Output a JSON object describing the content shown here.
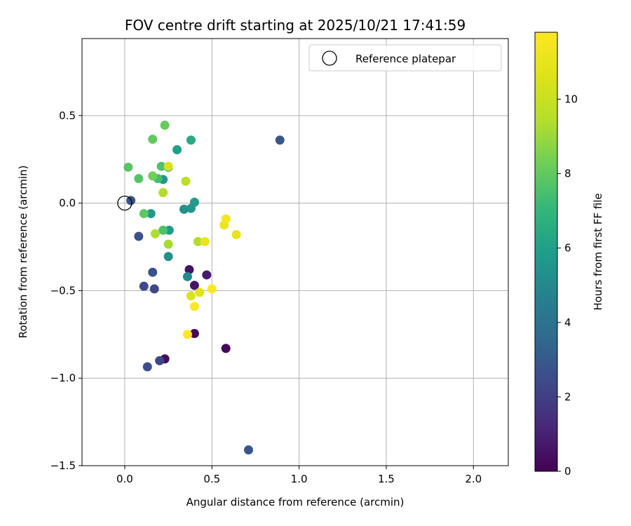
{
  "chart_data": {
    "type": "scatter",
    "title": "FOV centre drift starting at 2025/10/21 17:41:59",
    "xlabel": "Angular distance from reference (arcmin)",
    "ylabel": "Rotation from reference (arcmin)",
    "xlim": [
      -0.245,
      2.2
    ],
    "ylim": [
      -1.5,
      0.94
    ],
    "xticks": [
      0.0,
      0.5,
      1.0,
      1.5,
      2.0
    ],
    "xtick_labels": [
      "0.0",
      "0.5",
      "1.0",
      "1.5",
      "2.0"
    ],
    "yticks": [
      0.5,
      0.0,
      -0.5,
      -1.0,
      -1.5
    ],
    "ytick_labels": [
      "0.5",
      "0.0",
      "−0.5",
      "−1.0",
      "−1.5"
    ],
    "grid": true,
    "legend": {
      "position": "top-right",
      "label": "Reference platepar"
    },
    "reference_point": {
      "x": 0.0,
      "y": 0.0
    },
    "colorbar": {
      "label": "Hours from first FF file",
      "range": [
        0,
        11.8
      ],
      "ticks": [
        0,
        2,
        4,
        6,
        8,
        10
      ],
      "tick_labels": [
        "0",
        "2",
        "4",
        "6",
        "8",
        "10"
      ],
      "colormap": "viridis"
    },
    "points": [
      {
        "x": 0.23,
        "y": -0.89,
        "h": 0.3
      },
      {
        "x": 0.4,
        "y": -0.745,
        "h": 0.2
      },
      {
        "x": 0.58,
        "y": -0.83,
        "h": 0.2
      },
      {
        "x": 0.37,
        "y": -0.38,
        "h": 0.5
      },
      {
        "x": 0.4,
        "y": -0.47,
        "h": 0.6
      },
      {
        "x": 0.47,
        "y": -0.41,
        "h": 0.8
      },
      {
        "x": 0.2,
        "y": -0.9,
        "h": 2.2
      },
      {
        "x": 0.13,
        "y": -0.935,
        "h": 2.5
      },
      {
        "x": 0.71,
        "y": -1.41,
        "h": 2.8
      },
      {
        "x": 0.11,
        "y": -0.475,
        "h": 2.4
      },
      {
        "x": 0.17,
        "y": -0.49,
        "h": 2.3
      },
      {
        "x": 0.16,
        "y": -0.395,
        "h": 2.7
      },
      {
        "x": 0.08,
        "y": -0.19,
        "h": 2.6
      },
      {
        "x": 0.035,
        "y": 0.015,
        "h": 2.7
      },
      {
        "x": 0.89,
        "y": 0.36,
        "h": 2.9
      },
      {
        "x": 0.36,
        "y": -0.42,
        "h": 5.0
      },
      {
        "x": 0.25,
        "y": -0.305,
        "h": 5.3
      },
      {
        "x": 0.34,
        "y": -0.035,
        "h": 5.4
      },
      {
        "x": 0.38,
        "y": -0.03,
        "h": 5.6
      },
      {
        "x": 0.4,
        "y": 0.005,
        "h": 5.8
      },
      {
        "x": 0.22,
        "y": 0.135,
        "h": 5.6
      },
      {
        "x": 0.15,
        "y": -0.06,
        "h": 5.7
      },
      {
        "x": 0.255,
        "y": -0.155,
        "h": 5.8
      },
      {
        "x": 0.3,
        "y": 0.305,
        "h": 6.0
      },
      {
        "x": 0.38,
        "y": 0.36,
        "h": 6.4
      },
      {
        "x": 0.25,
        "y": 0.205,
        "h": 6.6
      },
      {
        "x": 0.19,
        "y": 0.14,
        "h": 7.4
      },
      {
        "x": 0.21,
        "y": 0.21,
        "h": 7.6
      },
      {
        "x": 0.08,
        "y": 0.14,
        "h": 7.7
      },
      {
        "x": 0.02,
        "y": 0.205,
        "h": 7.8
      },
      {
        "x": 0.22,
        "y": -0.155,
        "h": 7.6
      },
      {
        "x": 0.11,
        "y": -0.06,
        "h": 7.9
      },
      {
        "x": 0.16,
        "y": 0.365,
        "h": 8.0
      },
      {
        "x": 0.23,
        "y": 0.445,
        "h": 8.1
      },
      {
        "x": 0.16,
        "y": 0.155,
        "h": 8.3
      },
      {
        "x": 0.175,
        "y": -0.175,
        "h": 9.3
      },
      {
        "x": 0.25,
        "y": -0.235,
        "h": 9.2
      },
      {
        "x": 0.22,
        "y": 0.06,
        "h": 9.4
      },
      {
        "x": 0.35,
        "y": 0.125,
        "h": 9.6
      },
      {
        "x": 0.42,
        "y": -0.22,
        "h": 9.4
      },
      {
        "x": 0.25,
        "y": 0.21,
        "h": 10.5
      },
      {
        "x": 0.38,
        "y": -0.53,
        "h": 10.6
      },
      {
        "x": 0.43,
        "y": -0.51,
        "h": 10.8
      },
      {
        "x": 0.46,
        "y": -0.22,
        "h": 11.1
      },
      {
        "x": 0.57,
        "y": -0.125,
        "h": 11.1
      },
      {
        "x": 0.58,
        "y": -0.09,
        "h": 11.4
      },
      {
        "x": 0.64,
        "y": -0.18,
        "h": 11.0
      },
      {
        "x": 0.5,
        "y": -0.49,
        "h": 11.7
      },
      {
        "x": 0.4,
        "y": -0.59,
        "h": 11.7
      },
      {
        "x": 0.36,
        "y": -0.75,
        "h": 11.8
      }
    ]
  }
}
